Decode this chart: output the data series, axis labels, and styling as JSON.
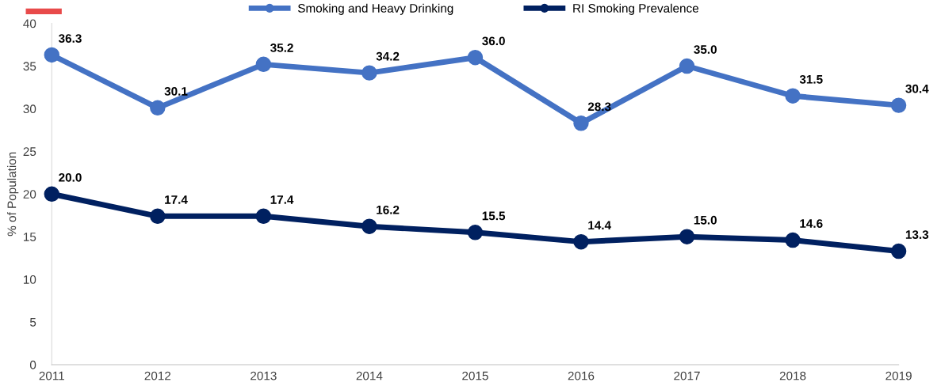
{
  "chart_data": {
    "type": "line",
    "ylabel": "% of Population",
    "x": [
      2011,
      2012,
      2013,
      2014,
      2015,
      2016,
      2017,
      2018,
      2019
    ],
    "series": [
      {
        "name": "Smoking and Heavy Drinking",
        "color": "#4472c4",
        "values": [
          36.3,
          30.1,
          35.2,
          34.2,
          36.0,
          28.3,
          35.0,
          31.5,
          30.4
        ],
        "value_labels": [
          "36.3",
          "30.1",
          "35.2",
          "34.2",
          "36.0",
          "28.3",
          "35.0",
          "31.5",
          "30.4"
        ]
      },
      {
        "name": "RI Smoking Prevalence",
        "color": "#002060",
        "values": [
          20.0,
          17.4,
          17.4,
          16.2,
          15.5,
          14.4,
          15.0,
          14.6,
          13.3
        ],
        "value_labels": [
          "20.0",
          "17.4",
          "17.4",
          "16.2",
          "15.5",
          "14.4",
          "15.0",
          "14.6",
          "13.3"
        ]
      }
    ],
    "xlim": [
      2011,
      2019
    ],
    "xticks": [
      2011,
      2012,
      2013,
      2014,
      2015,
      2016,
      2017,
      2018,
      2019
    ],
    "ylim": [
      0,
      40
    ],
    "yticks": [
      0,
      5,
      10,
      15,
      20,
      25,
      30,
      35,
      40
    ],
    "grid": false,
    "legend": "top",
    "marker": "circle",
    "line_style": "solid"
  }
}
